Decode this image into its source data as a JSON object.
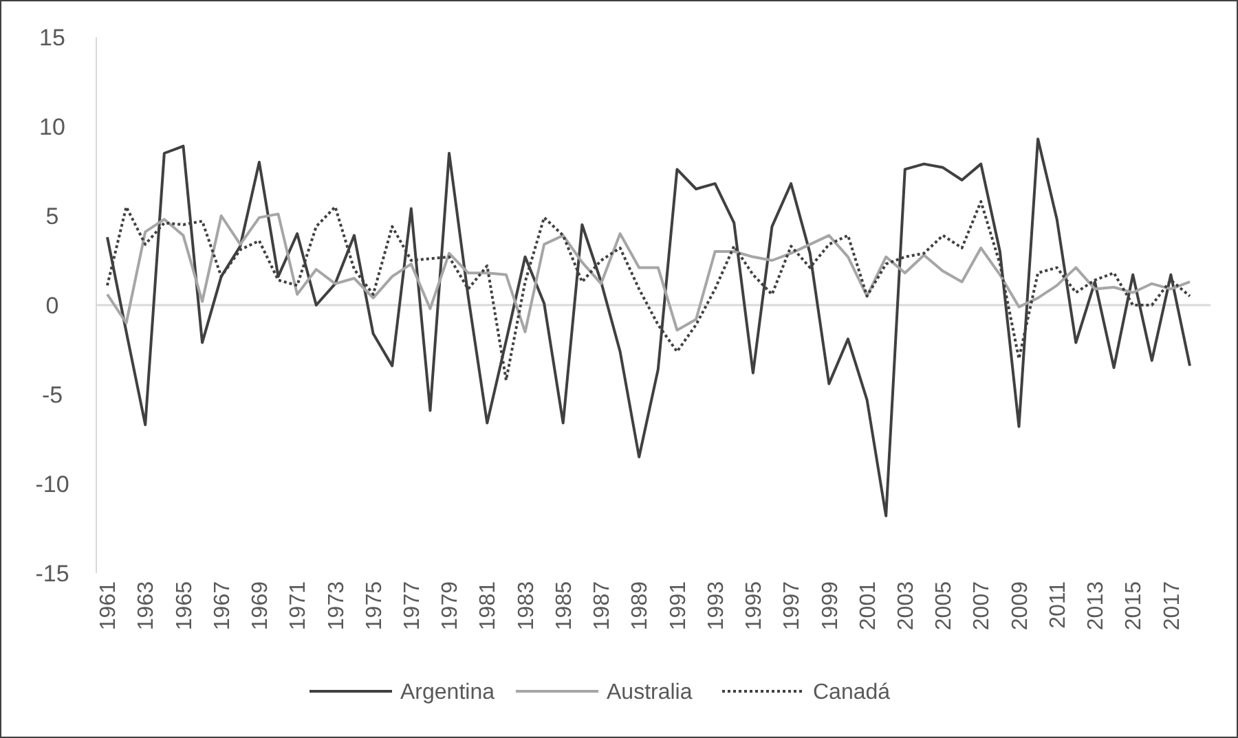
{
  "chart_data": {
    "type": "line",
    "categories": [
      "1961",
      null,
      "1963",
      null,
      "1965",
      null,
      "1967",
      null,
      "1969",
      null,
      "1971",
      null,
      "1973",
      null,
      "1975",
      null,
      "1977",
      null,
      "1979",
      null,
      "1981",
      null,
      "1983",
      null,
      "1985",
      null,
      "1987",
      null,
      "1989",
      null,
      "1991",
      null,
      "1993",
      null,
      "1995",
      null,
      "1997",
      null,
      "1999",
      null,
      "2001",
      null,
      "2003",
      null,
      "2005",
      null,
      "2007",
      null,
      "2009",
      null,
      "2011",
      null,
      "2013",
      null,
      "2015",
      null,
      "2017",
      null
    ],
    "series": [
      {
        "name": "Argentina",
        "color": "#404040",
        "line_style": "solid",
        "values": [
          3.8,
          -1.5,
          -6.7,
          8.5,
          8.9,
          -2.1,
          1.6,
          3.3,
          8.0,
          1.6,
          4.0,
          0,
          1.2,
          3.9,
          -1.6,
          -3.4,
          5.4,
          -5.9,
          8.5,
          0.5,
          -6.6,
          -2.0,
          2.7,
          0.1,
          -6.6,
          4.5,
          1.3,
          -2.6,
          -8.5,
          -3.6,
          7.6,
          6.5,
          6.8,
          4.6,
          -3.8,
          4.4,
          6.8,
          2.9,
          -4.4,
          -1.9,
          -5.3,
          -11.8,
          7.6,
          7.9,
          7.7,
          7.0,
          7.9,
          3.0,
          -6.8,
          9.3,
          4.8,
          -2.1,
          1.3,
          -3.5,
          1.7,
          -3.1,
          1.7,
          -3.4
        ]
      },
      {
        "name": "Australia",
        "color": "#a6a6a6",
        "line_style": "solid",
        "values": [
          0.6,
          -1.0,
          4.1,
          4.8,
          3.9,
          0.2,
          5.0,
          3.4,
          4.9,
          5.1,
          0.6,
          2.0,
          1.2,
          1.5,
          0.4,
          1.6,
          2.3,
          -0.2,
          2.9,
          1.8,
          1.8,
          1.7,
          -1.5,
          3.4,
          3.9,
          2.4,
          1.2,
          4.0,
          2.1,
          2.1,
          -1.4,
          -0.8,
          3.0,
          3.0,
          2.7,
          2.5,
          2.9,
          3.4,
          3.9,
          2.7,
          0.5,
          2.7,
          1.8,
          2.8,
          1.9,
          1.3,
          3.2,
          1.7,
          -0.1,
          0.4,
          1.1,
          2.1,
          0.9,
          1.0,
          0.7,
          1.2,
          0.9,
          1.3
        ]
      },
      {
        "name": "Canadá",
        "color": "#404040",
        "line_style": "dotted",
        "values": [
          1.1,
          5.5,
          3.4,
          4.6,
          4.5,
          4.7,
          1.6,
          3.1,
          3.6,
          1.4,
          1.1,
          4.4,
          5.5,
          2.0,
          0.6,
          4.4,
          2.5,
          2.6,
          2.7,
          0.9,
          2.2,
          -4.2,
          1.3,
          4.9,
          3.9,
          1.3,
          2.5,
          3.2,
          0.9,
          -1.1,
          -2.6,
          -1.1,
          0.9,
          3.3,
          1.7,
          0.6,
          3.3,
          2.1,
          3.4,
          3.9,
          0.5,
          2.3,
          2.7,
          2.9,
          3.9,
          3.2,
          5.8,
          2.3,
          -3.0,
          1.8,
          2.1,
          0.7,
          1.4,
          1.8,
          0.0,
          0.0,
          1.4,
          0.5
        ]
      }
    ],
    "ylim": [
      -15,
      15
    ],
    "yticks": [
      -15,
      -10,
      -5,
      0,
      5,
      10,
      15
    ],
    "legend": "bottom"
  }
}
